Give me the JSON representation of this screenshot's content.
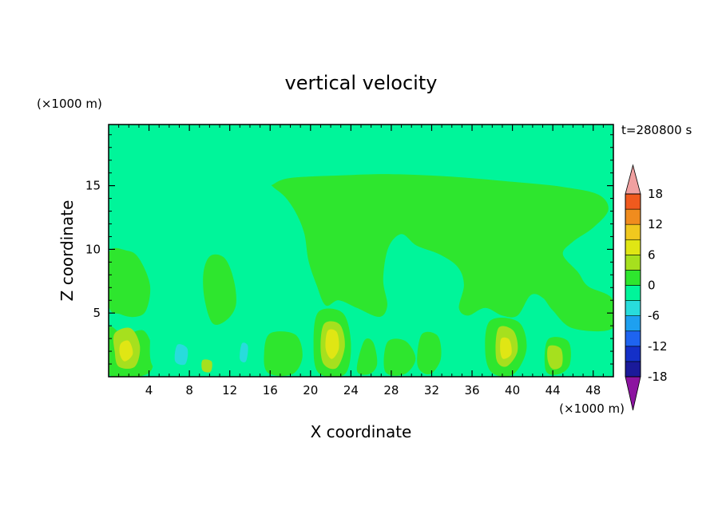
{
  "chart_data": {
    "type": "heatmap",
    "title": "vertical velocity",
    "xlabel": "X coordinate",
    "ylabel": "Z coordinate",
    "x_unit": "(×1000 m)",
    "y_unit": "(×1000 m)",
    "time_label": "t=280800 s",
    "xlim": [
      0,
      50
    ],
    "ylim": [
      0,
      19.8
    ],
    "x_ticks": [
      4,
      8,
      12,
      16,
      20,
      24,
      28,
      32,
      36,
      40,
      44,
      48
    ],
    "y_ticks": [
      5,
      10,
      15
    ],
    "colorbar": {
      "levels": [
        -21,
        -18,
        -15,
        -12,
        -9,
        -6,
        -3,
        0,
        3,
        6,
        9,
        12,
        15,
        18,
        21
      ],
      "tick_labels": [
        18,
        12,
        6,
        0,
        -6,
        -12,
        -18
      ],
      "colors": [
        "#5a0aa0",
        "#1a1a9a",
        "#1430c8",
        "#1e64f0",
        "#1ea0f0",
        "#28dcdc",
        "#00f59a",
        "#2ee62e",
        "#a6e01e",
        "#e0e614",
        "#f0c81e",
        "#f08c1e",
        "#f05a1e",
        "#e61e1e"
      ],
      "extend_low_color": "#8c14a0",
      "extend_high_color": "#f0a0a0",
      "background_color": "#00f59a"
    },
    "features": [
      {
        "kind": "region",
        "level": 0,
        "points": [
          [
            16.3,
            15.1
          ],
          [
            18,
            15.6
          ],
          [
            23,
            15.8
          ],
          [
            28,
            15.9
          ],
          [
            34,
            15.7
          ],
          [
            40,
            15.3
          ],
          [
            45,
            14.9
          ],
          [
            48.5,
            14.3
          ],
          [
            49.5,
            13.1
          ],
          [
            48,
            11.7
          ],
          [
            46,
            10.6
          ],
          [
            45,
            9.6
          ],
          [
            46.5,
            8.2
          ],
          [
            47.5,
            7.1
          ],
          [
            49.9,
            6.1
          ],
          [
            49.9,
            3.8
          ],
          [
            46,
            3.8
          ],
          [
            44,
            5.2
          ],
          [
            43,
            6.2
          ],
          [
            41.8,
            6.4
          ],
          [
            40.5,
            4.8
          ],
          [
            39,
            4.8
          ],
          [
            37.3,
            5.4
          ],
          [
            35.6,
            4.8
          ],
          [
            34.7,
            5.4
          ],
          [
            35.2,
            7.2
          ],
          [
            34.6,
            8.6
          ],
          [
            32.8,
            9.6
          ],
          [
            30.5,
            10.3
          ],
          [
            29,
            11.2
          ],
          [
            27.7,
            10.1
          ],
          [
            27.2,
            7.6
          ],
          [
            27.6,
            5.6
          ],
          [
            26.8,
            4.7
          ],
          [
            24.6,
            5.4
          ],
          [
            22.8,
            6.0
          ],
          [
            21.5,
            5.6
          ],
          [
            20.6,
            7.2
          ],
          [
            19.8,
            9.1
          ],
          [
            19.4,
            11.2
          ],
          [
            18.6,
            12.8
          ],
          [
            17.5,
            14.1
          ],
          [
            16.3,
            14.9
          ]
        ]
      },
      {
        "kind": "region",
        "level": 0,
        "points": [
          [
            0,
            9.7
          ],
          [
            1.8,
            9.9
          ],
          [
            3.0,
            9.3
          ],
          [
            4.1,
            7.2
          ],
          [
            3.7,
            5.2
          ],
          [
            2.6,
            4.7
          ],
          [
            1.2,
            4.9
          ],
          [
            0,
            5.6
          ]
        ]
      },
      {
        "kind": "region",
        "level": 0,
        "points": [
          [
            9.4,
            8.2
          ],
          [
            10.1,
            9.5
          ],
          [
            11.5,
            9.3
          ],
          [
            12.4,
            7.6
          ],
          [
            12.6,
            5.6
          ],
          [
            11.6,
            4.4
          ],
          [
            10.3,
            4.2
          ],
          [
            9.5,
            6.1
          ]
        ]
      },
      {
        "kind": "region",
        "level": 0,
        "points": [
          [
            0,
            3.8
          ],
          [
            1.5,
            3.3
          ],
          [
            3.5,
            3.6
          ],
          [
            4.4,
            1.8
          ],
          [
            3.8,
            0.2
          ],
          [
            0,
            0.2
          ]
        ]
      },
      {
        "kind": "region",
        "level": 0,
        "points": [
          [
            16,
            3.4
          ],
          [
            18.5,
            3.3
          ],
          [
            19.2,
            1.6
          ],
          [
            18.2,
            0.2
          ],
          [
            15.8,
            0.3
          ],
          [
            15.4,
            1.8
          ]
        ]
      },
      {
        "kind": "region",
        "level": 0,
        "points": [
          [
            20.8,
            5.1
          ],
          [
            23.2,
            5.0
          ],
          [
            24.0,
            2.6
          ],
          [
            23.4,
            0.2
          ],
          [
            20.8,
            0.3
          ],
          [
            20.3,
            2.6
          ]
        ]
      },
      {
        "kind": "region",
        "level": 0,
        "points": [
          [
            25.3,
            2.8
          ],
          [
            26.2,
            2.7
          ],
          [
            26.6,
            1.0
          ],
          [
            25.8,
            0.2
          ],
          [
            24.6,
            0.5
          ]
        ]
      },
      {
        "kind": "region",
        "level": 0,
        "points": [
          [
            27.6,
            2.7
          ],
          [
            29.4,
            2.8
          ],
          [
            30.4,
            1.4
          ],
          [
            29.3,
            0.2
          ],
          [
            27.4,
            0.4
          ]
        ]
      },
      {
        "kind": "region",
        "level": 0,
        "points": [
          [
            31.0,
            3.3
          ],
          [
            32.6,
            3.2
          ],
          [
            32.9,
            1.4
          ],
          [
            31.8,
            0.2
          ],
          [
            30.6,
            0.9
          ]
        ]
      },
      {
        "kind": "region",
        "level": 0,
        "points": [
          [
            37.8,
            4.4
          ],
          [
            40.6,
            4.3
          ],
          [
            41.4,
            2.2
          ],
          [
            40.1,
            0.2
          ],
          [
            38.0,
            0.3
          ],
          [
            37.3,
            2.0
          ]
        ]
      },
      {
        "kind": "region",
        "level": 0,
        "points": [
          [
            43.5,
            2.9
          ],
          [
            45.5,
            2.8
          ],
          [
            45.7,
            1.0
          ],
          [
            44.6,
            0.2
          ],
          [
            43.3,
            0.5
          ]
        ]
      },
      {
        "kind": "region",
        "level": -3,
        "points": [
          [
            4.6,
            4.9
          ],
          [
            6.4,
            5.0
          ],
          [
            7.8,
            3.6
          ],
          [
            8.7,
            2.0
          ],
          [
            8.0,
            0.5
          ],
          [
            6.2,
            0.2
          ],
          [
            4.4,
            0.8
          ],
          [
            4.1,
            2.6
          ]
        ]
      },
      {
        "kind": "region",
        "level": -3,
        "points": [
          [
            12.4,
            3.0
          ],
          [
            13.8,
            3.4
          ],
          [
            14.4,
            2.0
          ],
          [
            13.6,
            0.4
          ],
          [
            12.2,
            0.6
          ]
        ]
      },
      {
        "kind": "region",
        "level": -3,
        "points": [
          [
            46.0,
            2.4
          ],
          [
            48.6,
            2.4
          ],
          [
            49.2,
            1.2
          ],
          [
            47.8,
            0.3
          ],
          [
            46.2,
            0.6
          ]
        ]
      },
      {
        "kind": "region",
        "level": -6,
        "points": [
          [
            6.8,
            2.5
          ],
          [
            7.8,
            2.2
          ],
          [
            7.6,
            1.0
          ],
          [
            6.6,
            1.2
          ]
        ]
      },
      {
        "kind": "region",
        "level": -6,
        "points": [
          [
            13.2,
            2.6
          ],
          [
            13.8,
            2.4
          ],
          [
            13.6,
            1.2
          ],
          [
            13.0,
            1.4
          ]
        ]
      },
      {
        "kind": "region",
        "level": 3,
        "points": [
          [
            0.6,
            3.4
          ],
          [
            2.2,
            3.8
          ],
          [
            3.1,
            2.4
          ],
          [
            2.6,
            0.8
          ],
          [
            1.0,
            0.8
          ],
          [
            0.6,
            2.0
          ]
        ]
      },
      {
        "kind": "region",
        "level": 3,
        "points": [
          [
            21.4,
            4.2
          ],
          [
            22.9,
            4.1
          ],
          [
            23.4,
            2.4
          ],
          [
            22.6,
            0.7
          ],
          [
            21.3,
            1.0
          ],
          [
            21.0,
            2.6
          ]
        ]
      },
      {
        "kind": "region",
        "level": 3,
        "points": [
          [
            38.6,
            3.8
          ],
          [
            40.1,
            3.6
          ],
          [
            40.5,
            2.0
          ],
          [
            39.4,
            0.8
          ],
          [
            38.4,
            1.4
          ]
        ]
      },
      {
        "kind": "region",
        "level": 3,
        "points": [
          [
            43.6,
            2.4
          ],
          [
            44.8,
            2.2
          ],
          [
            44.9,
            0.9
          ],
          [
            44.0,
            0.6
          ],
          [
            43.5,
            1.3
          ]
        ]
      },
      {
        "kind": "region",
        "level": 3,
        "points": [
          [
            9.3,
            1.3
          ],
          [
            10.2,
            1.2
          ],
          [
            10.1,
            0.4
          ],
          [
            9.3,
            0.5
          ]
        ]
      },
      {
        "kind": "region",
        "level": 6,
        "points": [
          [
            21.7,
            3.6
          ],
          [
            22.6,
            3.5
          ],
          [
            22.8,
            2.2
          ],
          [
            22.1,
            1.4
          ],
          [
            21.5,
            2.2
          ]
        ]
      },
      {
        "kind": "region",
        "level": 6,
        "points": [
          [
            1.2,
            2.6
          ],
          [
            2.0,
            2.8
          ],
          [
            2.4,
            1.8
          ],
          [
            1.6,
            1.2
          ],
          [
            1.1,
            1.8
          ]
        ]
      },
      {
        "kind": "region",
        "level": 6,
        "points": [
          [
            38.9,
            3.0
          ],
          [
            39.7,
            2.9
          ],
          [
            39.9,
            1.8
          ],
          [
            39.1,
            1.4
          ],
          [
            38.8,
            2.0
          ]
        ]
      }
    ]
  }
}
